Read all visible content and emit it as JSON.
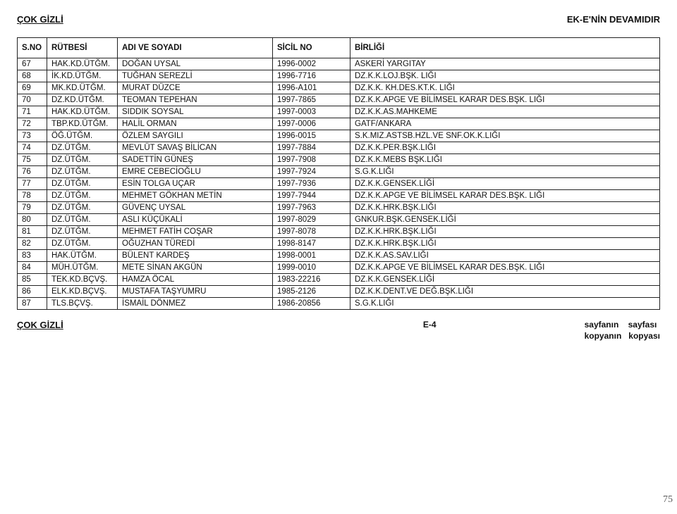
{
  "header": {
    "classification_top": "ÇOK GİZLİ",
    "continuation": "EK-E'NİN DEVAMIDIR",
    "classification_bottom": "ÇOK GİZLİ",
    "page_code": "E-4",
    "page_meta_1a": "sayfanın",
    "page_meta_1b": "sayfası",
    "page_meta_2a": "kopyanın",
    "page_meta_2b": "kopyası",
    "side_page_num": "75"
  },
  "table": {
    "columns": [
      "S.NO",
      "RÜTBESİ",
      "ADI VE SOYADI",
      "SİCİL NO",
      "BİRLİĞİ"
    ],
    "rows": [
      [
        "67",
        "HAK.KD.ÜTĞM.",
        "DOĞAN UYSAL",
        "1996-0002",
        "ASKERİ YARGITAY"
      ],
      [
        "68",
        "İK.KD.ÜTĞM.",
        "TUĞHAN SEREZLİ",
        "1996-7716",
        "DZ.K.K.LOJ.BŞK. LIĞI"
      ],
      [
        "69",
        "MK.KD.ÜTĞM.",
        "MURAT DÜZCE",
        "1996-A101",
        "DZ.K.K. KH.DES.KT.K. LIĞI"
      ],
      [
        "70",
        "DZ.KD.ÜTĞM.",
        "TEOMAN TEPEHAN",
        "1997-7865",
        "DZ.K.K.APGE VE BİLİMSEL KARAR DES.BŞK. LIĞI"
      ],
      [
        "71",
        "HAK.KD.ÜTĞM.",
        "SIDDIK SOYSAL",
        "1997-0003",
        "DZ.K.K.AS.MAHKEME"
      ],
      [
        "72",
        "TBP.KD.ÜTĞM.",
        "HALİL ORMAN",
        "1997-0006",
        "GATF/ANKARA"
      ],
      [
        "73",
        "ÖĞ.ÜTĞM.",
        "ÖZLEM SAYGILI",
        "1996-0015",
        "S.K.MIZ.ASTSB.HZL.VE SNF.OK.K.LIĞI"
      ],
      [
        "74",
        "DZ.ÜTĞM.",
        "MEVLÜT SAVAŞ BİLİCAN",
        "1997-7884",
        "DZ.K.K.PER.BŞK.LIĞI"
      ],
      [
        "75",
        "DZ.ÜTĞM.",
        "SADETTİN GÜNEŞ",
        "1997-7908",
        "DZ.K.K.MEBS BŞK.LIĞI"
      ],
      [
        "76",
        "DZ.ÜTĞM.",
        "EMRE CEBECİOĞLU",
        "1997-7924",
        "S.G.K.LIĞI"
      ],
      [
        "77",
        "DZ.ÜTĞM.",
        "ESİN TOLGA UÇAR",
        "1997-7936",
        "DZ.K.K.GENSEK.LİĞİ"
      ],
      [
        "78",
        "DZ.ÜTĞM.",
        "MEHMET GÖKHAN METİN",
        "1997-7944",
        "DZ.K.K.APGE VE BİLİMSEL KARAR DES.BŞK. LIĞI"
      ],
      [
        "79",
        "DZ.ÜTĞM.",
        "GÜVENÇ UYSAL",
        "1997-7963",
        "DZ.K.K.HRK.BŞK.LIĞI"
      ],
      [
        "80",
        "DZ.ÜTĞM.",
        "ASLI KÜÇÜKALİ",
        "1997-8029",
        "GNKUR.BŞK.GENSEK.LİĞİ"
      ],
      [
        "81",
        "DZ.ÜTĞM.",
        "MEHMET FATİH COŞAR",
        "1997-8078",
        "DZ.K.K.HRK.BŞK.LIĞI"
      ],
      [
        "82",
        "DZ.ÜTĞM.",
        "OĞUZHAN TÜREDİ",
        "1998-8147",
        "DZ.K.K.HRK.BŞK.LIĞI"
      ],
      [
        "83",
        "HAK.ÜTĞM.",
        "BÜLENT KARDEŞ",
        "1998-0001",
        "DZ.K.K.AS.SAV.LIĞI"
      ],
      [
        "84",
        "MÜH.ÜTĞM.",
        "METE SİNAN AKGÜN",
        "1999-0010",
        "DZ.K.K.APGE VE BİLİMSEL KARAR DES.BŞK. LIĞI"
      ],
      [
        "85",
        "TEK.KD.BÇVŞ.",
        "HAMZA ÖCAL",
        "1983-22216",
        "DZ.K.K.GENSEK.LİĞİ"
      ],
      [
        "86",
        "ELK.KD.BÇVŞ.",
        "MUSTAFA TAŞYUMRU",
        "1985-2126",
        "DZ.K.K.DENT.VE DEĞ.BŞK.LIĞI"
      ],
      [
        "87",
        "TLS.BÇVŞ.",
        "İSMAİL DÖNMEZ",
        "1986-20856",
        "S.G.K.LIĞI"
      ]
    ],
    "wrap_unit_rows": [
      3,
      11,
      17
    ]
  }
}
